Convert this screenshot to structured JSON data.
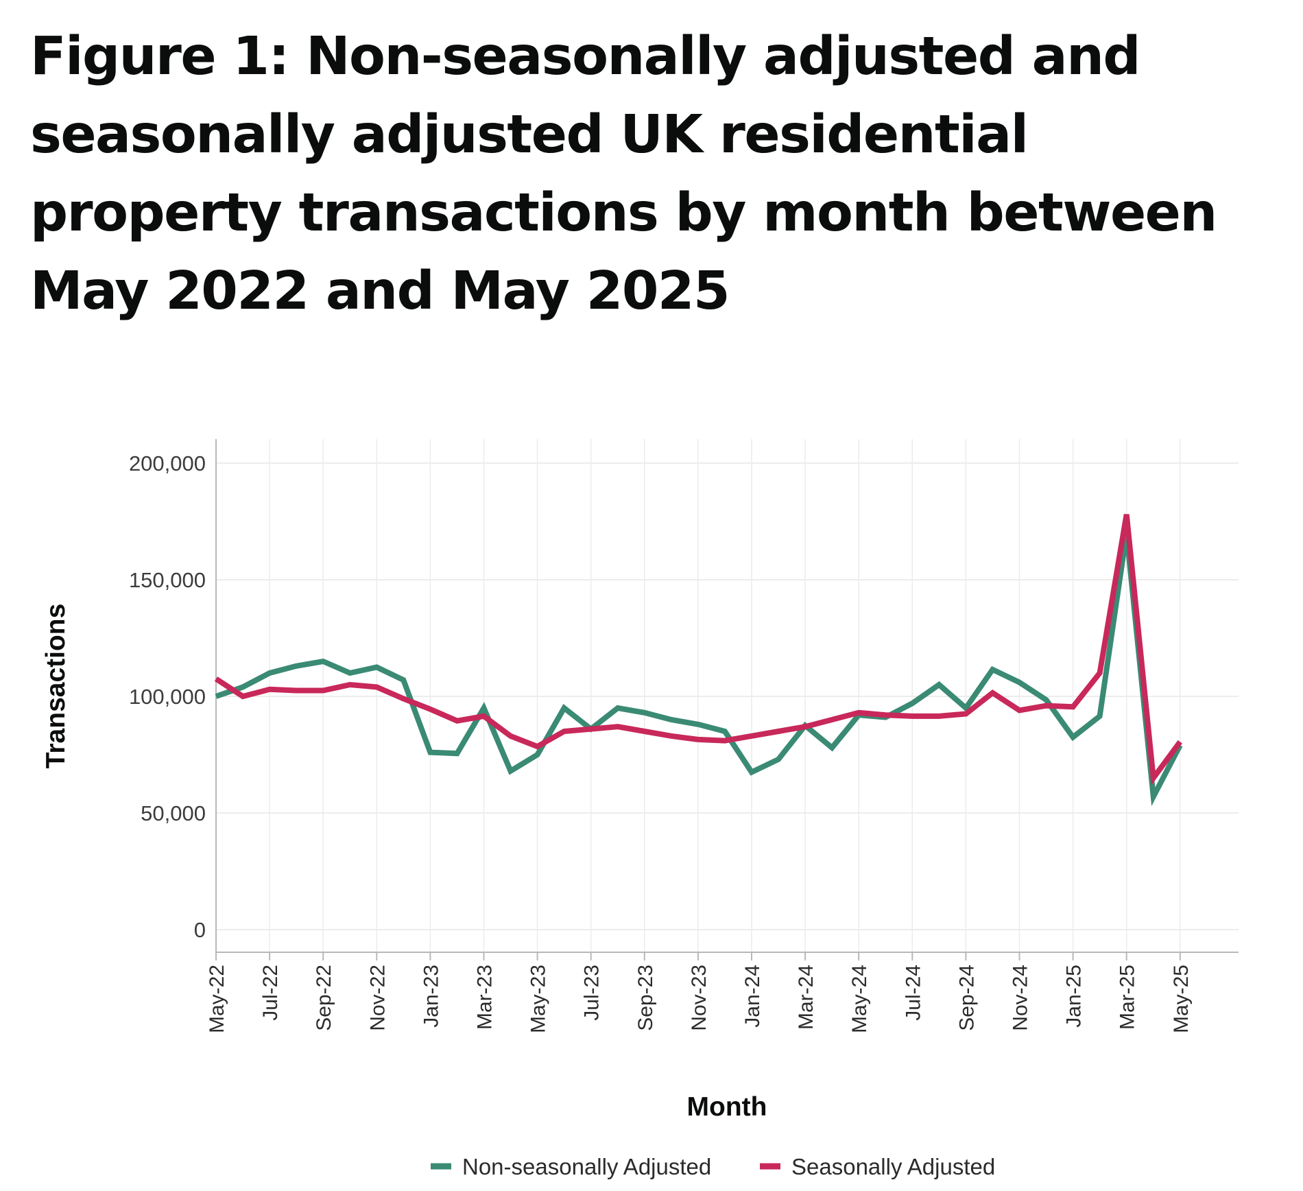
{
  "chart_data": {
    "type": "line",
    "title": "Figure 1: Non-seasonally adjusted and seasonally adjusted UK residential property transactions by month between May 2022 and May 2025",
    "xlabel": "Month",
    "ylabel": "Transactions",
    "ylim": [
      0,
      200000
    ],
    "yticks": [
      0,
      50000,
      100000,
      150000,
      200000
    ],
    "ytick_labels": [
      "0",
      "50,000",
      "100,000",
      "150,000",
      "200,000"
    ],
    "grid": true,
    "legend_position": "bottom",
    "x": [
      "May-22",
      "Jun-22",
      "Jul-22",
      "Aug-22",
      "Sep-22",
      "Oct-22",
      "Nov-22",
      "Dec-22",
      "Jan-23",
      "Feb-23",
      "Mar-23",
      "Apr-23",
      "May-23",
      "Jun-23",
      "Jul-23",
      "Aug-23",
      "Sep-23",
      "Oct-23",
      "Nov-23",
      "Dec-23",
      "Jan-24",
      "Feb-24",
      "Mar-24",
      "Apr-24",
      "May-24",
      "Jun-24",
      "Jul-24",
      "Aug-24",
      "Sep-24",
      "Oct-24",
      "Nov-24",
      "Dec-24",
      "Jan-25",
      "Feb-25",
      "Mar-25",
      "Apr-25",
      "May-25"
    ],
    "xtick_labels": [
      "May-22",
      "Jul-22",
      "Sep-22",
      "Nov-22",
      "Jan-23",
      "Mar-23",
      "May-23",
      "Jul-23",
      "Sep-23",
      "Nov-23",
      "Jan-24",
      "Mar-24",
      "May-24",
      "Jul-24",
      "Sep-24",
      "Nov-24",
      "Jan-25",
      "Mar-25",
      "May-25"
    ],
    "series": [
      {
        "name": "Non-seasonally Adjusted",
        "color": "#3a8a74",
        "values": [
          100000,
          104000,
          110000,
          113000,
          115000,
          110000,
          112500,
          107000,
          76000,
          75500,
          95000,
          68000,
          75000,
          95000,
          86000,
          95000,
          93000,
          90000,
          88000,
          85000,
          67500,
          73000,
          87500,
          78000,
          92000,
          91000,
          97000,
          105000,
          95000,
          111500,
          106000,
          98500,
          82500,
          91500,
          170000,
          57000,
          79000
        ]
      },
      {
        "name": "Seasonally Adjusted",
        "color": "#c8285a",
        "values": [
          107500,
          100000,
          103000,
          102500,
          102500,
          105000,
          104000,
          99000,
          94500,
          89500,
          91500,
          83000,
          78500,
          85000,
          86000,
          87000,
          85000,
          83000,
          81500,
          81000,
          83000,
          85000,
          87000,
          90000,
          93000,
          92000,
          91500,
          91500,
          92500,
          101500,
          94000,
          96000,
          95500,
          110000,
          178000,
          65000,
          80500
        ]
      }
    ]
  }
}
